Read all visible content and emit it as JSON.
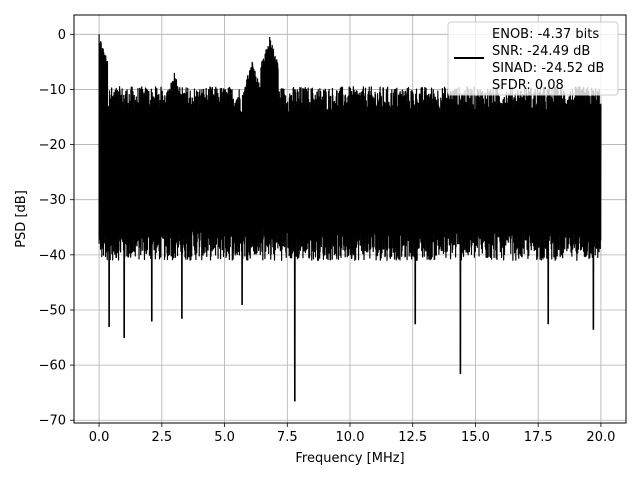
{
  "chart_data": {
    "type": "line",
    "title": "",
    "xlabel": "Frequency [MHz]",
    "ylabel": "PSD [dB]",
    "xlim": [
      -1,
      21
    ],
    "ylim": [
      -70.5,
      3.5
    ],
    "xticks": [
      0,
      2.5,
      5,
      7.5,
      10,
      12.5,
      15,
      17.5,
      20
    ],
    "xtick_labels": [
      "0.0",
      "2.5",
      "5.0",
      "7.5",
      "10.0",
      "12.5",
      "15.0",
      "17.5",
      "20.0"
    ],
    "yticks": [
      0,
      -10,
      -20,
      -30,
      -40,
      -50,
      -60,
      -70
    ],
    "ytick_labels": [
      "0",
      "−10",
      "−20",
      "−30",
      "−40",
      "−50",
      "−60",
      "−70"
    ],
    "grid": true,
    "legend_position": "top-right",
    "legend_lines": [
      "ENOB: -4.37 bits",
      "SNR: -24.49 dB",
      "SINAD: -24.52 dB",
      "SFDR: 0.08"
    ],
    "series": [
      {
        "color": "#000000",
        "x_range": [
          0,
          20
        ],
        "noise_floor_band": [
          -38,
          -12
        ],
        "peaks": [
          {
            "x": 0.0,
            "y": 0
          },
          {
            "x": 3.0,
            "y": -7
          },
          {
            "x": 6.1,
            "y": -5
          },
          {
            "x": 6.8,
            "y": -0.5
          }
        ],
        "dips": [
          {
            "x": 0.4,
            "y": -53
          },
          {
            "x": 1.0,
            "y": -55
          },
          {
            "x": 2.1,
            "y": -52
          },
          {
            "x": 3.3,
            "y": -51.5
          },
          {
            "x": 5.7,
            "y": -49
          },
          {
            "x": 7.8,
            "y": -66.5
          },
          {
            "x": 12.6,
            "y": -52.5
          },
          {
            "x": 14.4,
            "y": -61.5
          },
          {
            "x": 17.9,
            "y": -52.5
          },
          {
            "x": 19.7,
            "y": -53.5
          }
        ]
      }
    ]
  }
}
